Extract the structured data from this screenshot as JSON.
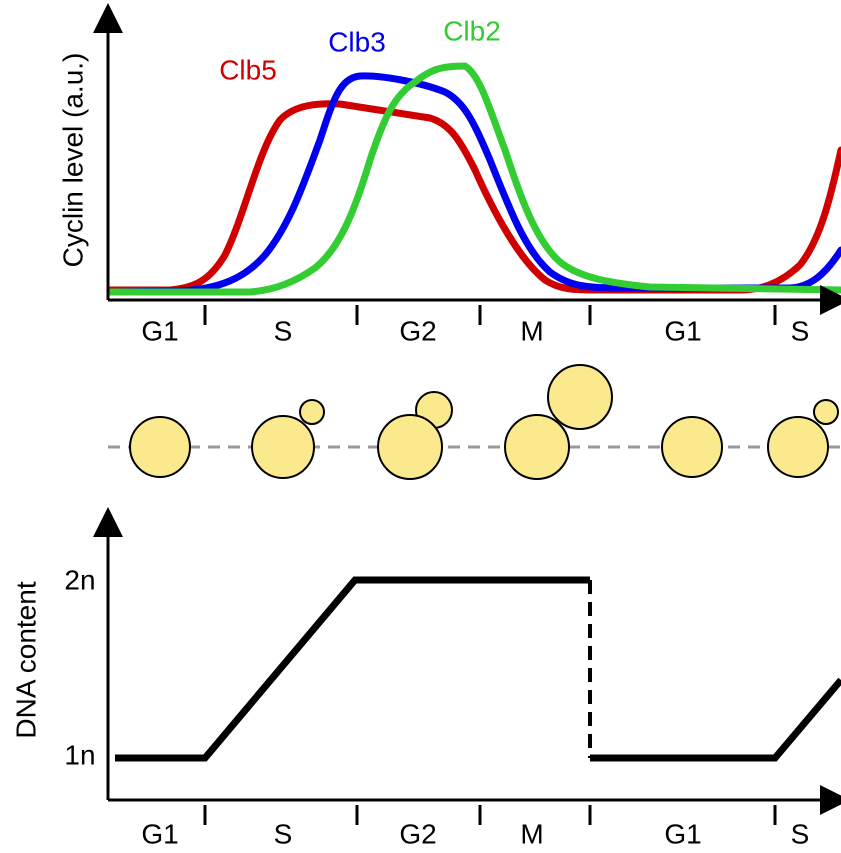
{
  "top_panel": {
    "y_label": "Cyclin level (a.u.)",
    "curves": [
      {
        "label": "Clb5",
        "color": "#d00000"
      },
      {
        "label": "Clb3",
        "color": "#0000ee"
      },
      {
        "label": "Clb2",
        "color": "#33cc33"
      }
    ],
    "phases": [
      "G1",
      "S",
      "G2",
      "M",
      "G1",
      "S"
    ]
  },
  "bottom_panel": {
    "y_label": "DNA content",
    "levels": [
      "2n",
      "1n"
    ],
    "phases": [
      "G1",
      "S",
      "G2",
      "M",
      "G1",
      "S"
    ]
  }
}
